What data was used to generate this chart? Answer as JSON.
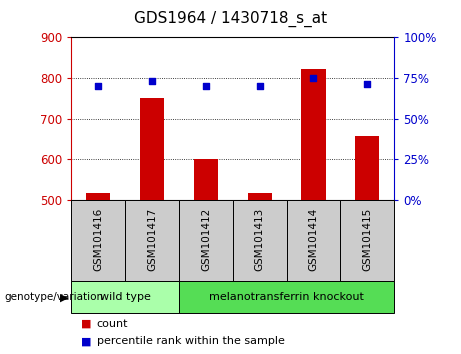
{
  "title": "GDS1964 / 1430718_s_at",
  "samples": [
    "GSM101416",
    "GSM101417",
    "GSM101412",
    "GSM101413",
    "GSM101414",
    "GSM101415"
  ],
  "counts": [
    518,
    750,
    600,
    518,
    822,
    657
  ],
  "percentiles": [
    70,
    73,
    70,
    70,
    75,
    71
  ],
  "ylim_left": [
    500,
    900
  ],
  "ylim_right": [
    0,
    100
  ],
  "yticks_left": [
    500,
    600,
    700,
    800,
    900
  ],
  "yticks_right": [
    0,
    25,
    50,
    75,
    100
  ],
  "bar_color": "#cc0000",
  "dot_color": "#0000cc",
  "bar_bottom": 500,
  "groups": [
    {
      "label": "wild type",
      "indices": [
        0,
        1
      ],
      "color": "#aaffaa"
    },
    {
      "label": "melanotransferrin knockout",
      "indices": [
        2,
        3,
        4,
        5
      ],
      "color": "#55dd55"
    }
  ],
  "tick_label_color_left": "#cc0000",
  "tick_label_color_right": "#0000cc",
  "background_color": "#ffffff",
  "label_box_color": "#cccccc",
  "legend_count_label": "count",
  "legend_percentile_label": "percentile rank within the sample"
}
